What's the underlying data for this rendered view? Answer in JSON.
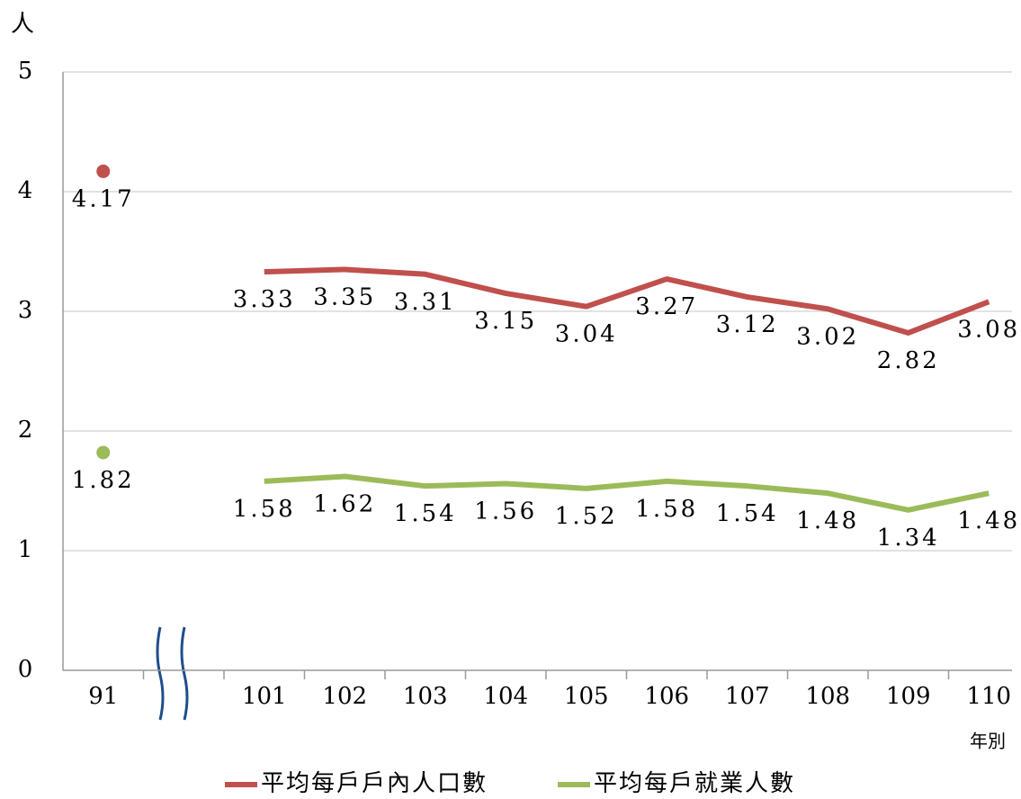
{
  "chart_data": {
    "type": "line",
    "y_label": "人",
    "x_label": "年別",
    "categories": [
      "91",
      null,
      "101",
      "102",
      "103",
      "104",
      "105",
      "106",
      "107",
      "108",
      "109",
      "110"
    ],
    "series": [
      {
        "name": "平均每戶戶內人口數",
        "color": "#c0504d",
        "values": [
          4.17,
          null,
          3.33,
          3.35,
          3.31,
          3.15,
          3.04,
          3.27,
          3.12,
          3.02,
          2.82,
          3.08
        ]
      },
      {
        "name": "平均每戶就業人數",
        "color": "#9bbb59",
        "values": [
          1.82,
          null,
          1.58,
          1.62,
          1.54,
          1.56,
          1.52,
          1.58,
          1.54,
          1.48,
          1.34,
          1.48
        ]
      }
    ],
    "ylim": [
      0,
      5
    ],
    "yticks": [
      0,
      1,
      2,
      3,
      4,
      5
    ],
    "grid": true
  }
}
